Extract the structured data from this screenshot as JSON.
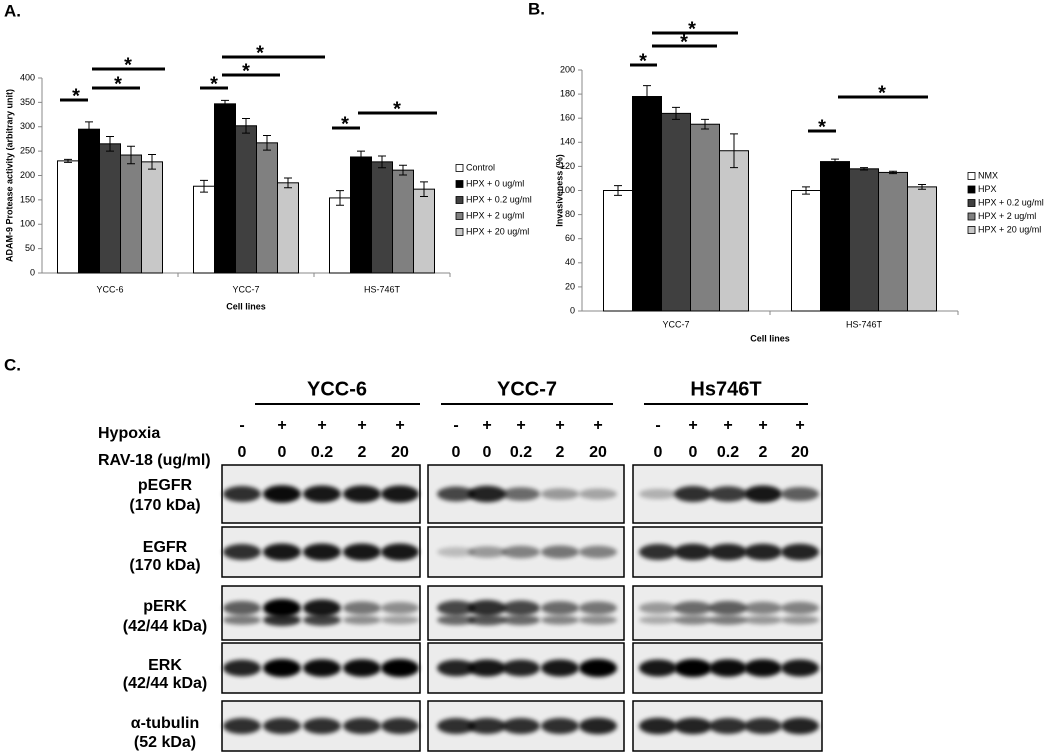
{
  "panels": [
    "A.",
    "B.",
    "C."
  ],
  "chart_data": [
    {
      "type": "bar",
      "y_label": "ADAM-9 Protease activity (arbitrary unit)",
      "x_label": "Cell lines",
      "categories": [
        "YCC-6",
        "YCC-7",
        "HS-746T"
      ],
      "ylim": [
        0,
        400
      ],
      "yticks": [
        0,
        50,
        100,
        150,
        200,
        250,
        300,
        350,
        400
      ],
      "series": [
        {
          "name": "Control",
          "color": "#ffffff",
          "values": [
            230,
            178,
            154
          ],
          "errors": [
            3,
            12,
            15
          ]
        },
        {
          "name": "HPX + 0 ug/ml",
          "color": "#000000",
          "values": [
            295,
            347,
            238
          ],
          "errors": [
            15,
            7,
            12
          ]
        },
        {
          "name": "HPX + 0.2 ug/ml",
          "color": "#404040",
          "values": [
            265,
            302,
            228
          ],
          "errors": [
            15,
            15,
            12
          ]
        },
        {
          "name": "HPX + 2 ug/ml",
          "color": "#808080",
          "values": [
            242,
            267,
            211
          ],
          "errors": [
            18,
            15,
            10
          ]
        },
        {
          "name": "HPX + 20 ug/ml",
          "color": "#c8c8c8",
          "values": [
            228,
            185,
            172
          ],
          "errors": [
            15,
            10,
            15
          ]
        }
      ],
      "annotations": [
        "*",
        "*",
        "*",
        "*",
        "*",
        "*",
        "*",
        "*"
      ]
    },
    {
      "type": "bar",
      "y_label": "Invasiveness (%)",
      "x_label": "Cell lines",
      "categories": [
        "YCC-7",
        "HS-746T"
      ],
      "ylim": [
        0,
        200
      ],
      "yticks": [
        0,
        20,
        40,
        60,
        80,
        100,
        120,
        140,
        160,
        180,
        200
      ],
      "series": [
        {
          "name": "NMX",
          "color": "#ffffff",
          "values": [
            100,
            100
          ],
          "errors": [
            4,
            3
          ]
        },
        {
          "name": "HPX",
          "color": "#000000",
          "values": [
            178,
            124
          ],
          "errors": [
            9,
            2
          ]
        },
        {
          "name": "HPX + 0.2 ug/ml",
          "color": "#404040",
          "values": [
            164,
            118
          ],
          "errors": [
            5,
            1
          ]
        },
        {
          "name": "HPX + 2 ug/ml",
          "color": "#808080",
          "values": [
            155,
            115
          ],
          "errors": [
            4,
            1
          ]
        },
        {
          "name": "HPX + 20 ug/ml",
          "color": "#c8c8c8",
          "values": [
            133,
            103
          ],
          "errors": [
            14,
            2
          ]
        }
      ],
      "annotations": [
        "*",
        "*",
        "*",
        "*",
        "*"
      ]
    }
  ],
  "blot": {
    "hypoxia_label": "Hypoxia",
    "rav18_label": "RAV-18 (ug/ml)",
    "groups": [
      {
        "name": "YCC-6",
        "hypoxia": [
          "-",
          "+",
          "+",
          "+",
          "+"
        ],
        "rav18": [
          "0",
          "0",
          "0.2",
          "2",
          "20"
        ]
      },
      {
        "name": "YCC-7",
        "hypoxia": [
          "-",
          "+",
          "+",
          "+",
          "+"
        ],
        "rav18": [
          "0",
          "0",
          "0.2",
          "2",
          "20"
        ]
      },
      {
        "name": "Hs746T",
        "hypoxia": [
          "-",
          "+",
          "+",
          "+",
          "+"
        ],
        "rav18": [
          "0",
          "0",
          "0.2",
          "2",
          "20"
        ]
      }
    ],
    "rows": [
      {
        "name": "pEGFR",
        "size": "(170 kDa)"
      },
      {
        "name": "EGFR",
        "size": "(170 kDa)"
      },
      {
        "name": "pERK",
        "size": "(42/44 kDa)"
      },
      {
        "name": "ERK",
        "size": "(42/44 kDa)"
      },
      {
        "name": "α-tubulin",
        "size": "(52 kDa)"
      }
    ]
  }
}
